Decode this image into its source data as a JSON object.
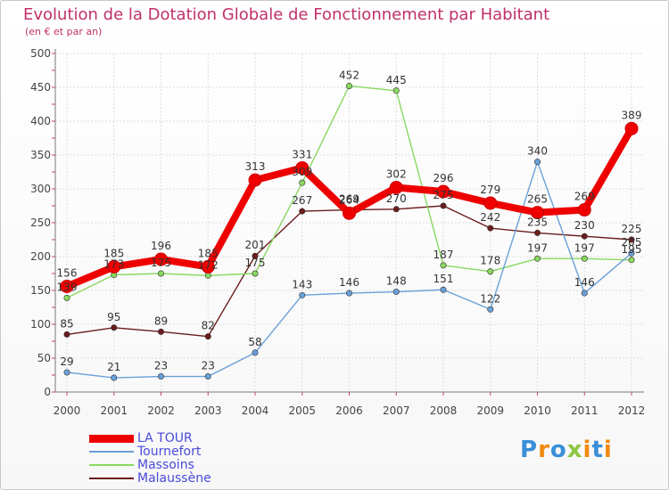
{
  "chart_data": {
    "type": "line",
    "title": "Evolution de la Dotation Globale de Fonctionnement par Habitant",
    "subtitle": "(en € et par an)",
    "xlabel": "",
    "ylabel": "",
    "ylim": [
      0,
      500
    ],
    "yticks": [
      0,
      50,
      100,
      150,
      200,
      250,
      300,
      350,
      400,
      450,
      500
    ],
    "categories": [
      "2000",
      "2001",
      "2002",
      "2003",
      "2004",
      "2005",
      "2006",
      "2007",
      "2008",
      "2009",
      "2010",
      "2011",
      "2012"
    ],
    "grid": true,
    "legend_position": "bottom-left",
    "series": [
      {
        "name": "Malaussène",
        "color": "#6b1c1c",
        "values": [
          85,
          95,
          89,
          82,
          201,
          267,
          269,
          270,
          275,
          242,
          235,
          230,
          225
        ]
      },
      {
        "name": "Massoins",
        "color": "#88d860",
        "values": [
          139,
          173,
          175,
          172,
          175,
          309,
          452,
          445,
          187,
          178,
          197,
          197,
          195
        ]
      },
      {
        "name": "Tournefort",
        "color": "#6aa0d8",
        "values": [
          29,
          21,
          23,
          23,
          58,
          143,
          146,
          148,
          151,
          122,
          340,
          146,
          205
        ]
      },
      {
        "name": "LA TOUR",
        "color": "#ee0000",
        "values": [
          156,
          185,
          196,
          185,
          313,
          331,
          264,
          302,
          296,
          279,
          265,
          269,
          389
        ]
      }
    ],
    "labels": [
      {
        "series": "Malaussène",
        "texts": [
          "85",
          "95",
          "89",
          "82",
          "201",
          "267",
          "269",
          "270",
          "275",
          "242",
          "235",
          "230",
          "225"
        ]
      },
      {
        "series": "Massoins",
        "texts": [
          "139",
          "173",
          "175",
          "172",
          "175",
          "309",
          "452",
          "445",
          "187",
          "178",
          "197",
          "197",
          "195"
        ]
      },
      {
        "series": "Tournefort",
        "texts": [
          "29",
          "21",
          "23",
          "23",
          "58",
          "143",
          "146",
          "148",
          "151",
          "122",
          "340",
          "146",
          "205"
        ]
      },
      {
        "series": "LA TOUR",
        "texts": [
          "156",
          "185",
          "196",
          "185",
          "313",
          "331",
          "264",
          "302",
          "296",
          "279",
          "265",
          "269",
          "389"
        ]
      }
    ]
  },
  "legend": {
    "items": [
      {
        "label": "LA TOUR",
        "color": "#ee0000"
      },
      {
        "label": "Tournefort",
        "color": "#6aa0d8"
      },
      {
        "label": "Massoins",
        "color": "#88d860"
      },
      {
        "label": "Malaussène",
        "color": "#6b1c1c"
      }
    ]
  },
  "logo": {
    "text": "Proxiti",
    "letters": [
      "P",
      "r",
      "o",
      "x",
      "i",
      "t",
      "i"
    ],
    "colors": [
      "#3a8fd8",
      "#f08a10",
      "#3a8fd8",
      "#8cc63f",
      "#f08a10",
      "#3a8fd8",
      "#f08a10"
    ]
  }
}
